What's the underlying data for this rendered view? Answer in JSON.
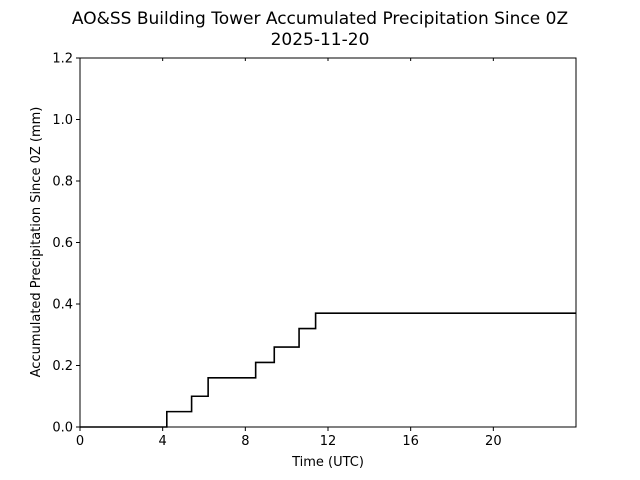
{
  "chart_data": {
    "type": "line",
    "title": "AO&SS Building Tower Accumulated Precipitation Since 0Z",
    "subtitle": "2025-11-20",
    "xlabel": "Time (UTC)",
    "ylabel": "Accumulated Precipitation Since 0Z (mm)",
    "xlim": [
      0,
      24
    ],
    "ylim": [
      0,
      1.2
    ],
    "xticks": [
      0,
      4,
      8,
      12,
      16,
      20
    ],
    "yticks": [
      0.0,
      0.2,
      0.4,
      0.6,
      0.8,
      1.0,
      1.2
    ],
    "grid": false,
    "line_color": "#000000",
    "series": [
      {
        "step": "post",
        "x": [
          0,
          4.2,
          5.4,
          6.2,
          8.5,
          9.4,
          10.6,
          11.4,
          24
        ],
        "y": [
          0,
          0.05,
          0.1,
          0.16,
          0.21,
          0.26,
          0.32,
          0.37,
          0.37
        ]
      }
    ]
  }
}
